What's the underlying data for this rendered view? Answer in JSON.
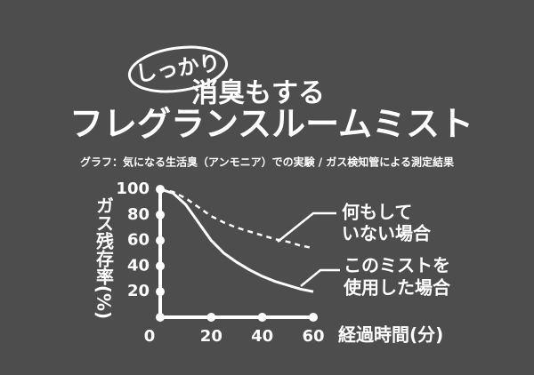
{
  "chart_data": {
    "type": "line",
    "badge": "しっかり",
    "title": "消臭もする",
    "subtitle": "フレグランスルームミスト",
    "caption": "グラフ：気になる生活臭（アンモニア）での実験 / ガス検知管による測定結果",
    "y_label": "ガス残存率(%)",
    "x_label": "経過時間(分)",
    "x": [
      0,
      5,
      10,
      15,
      20,
      25,
      30,
      35,
      40,
      45,
      50,
      55,
      60
    ],
    "series": [
      {
        "name": [
          "何もして",
          "いない場合"
        ],
        "color": "#ffffff",
        "style": "dashed",
        "values": [
          100,
          98,
          93,
          86,
          79,
          74,
          70,
          67,
          64,
          61,
          59,
          56,
          54
        ]
      },
      {
        "name": [
          "このミストを",
          "使用した場合"
        ],
        "color": "#ffffff",
        "style": "solid",
        "values": [
          100,
          97,
          88,
          74,
          60,
          50,
          43,
          37,
          32,
          28,
          25,
          22,
          20
        ]
      }
    ],
    "xlim": [
      0,
      60
    ],
    "xticks": [
      0,
      20,
      40,
      60
    ],
    "ylim": [
      0,
      100
    ],
    "yticks": [
      20,
      40,
      60,
      80,
      100
    ]
  }
}
